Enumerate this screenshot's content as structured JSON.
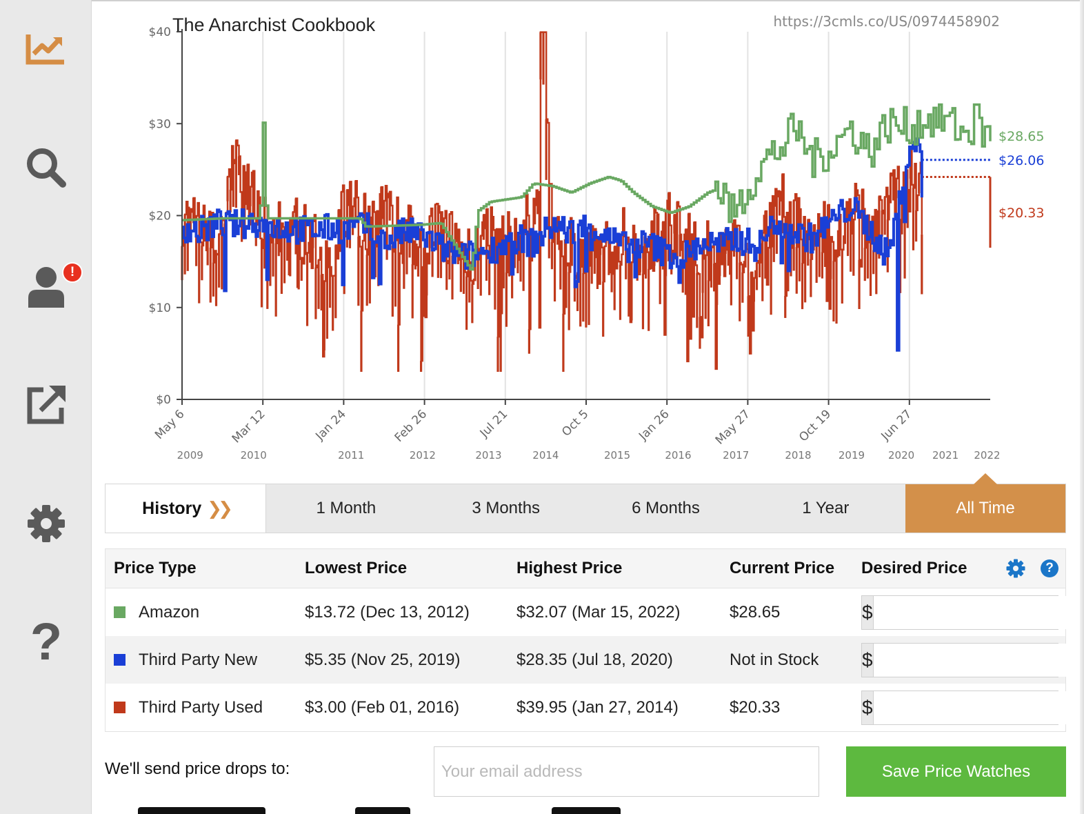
{
  "sidebar": {
    "items": [
      {
        "name": "price-history",
        "icon": "chart-line-icon",
        "color": "#d58d45"
      },
      {
        "name": "search",
        "icon": "search-icon",
        "color": "#5a5a5a"
      },
      {
        "name": "account",
        "icon": "user-icon",
        "color": "#5a5a5a",
        "badge": "!"
      },
      {
        "name": "open-external",
        "icon": "external-link-icon",
        "color": "#5a5a5a"
      },
      {
        "name": "settings",
        "icon": "gear-icon",
        "color": "#5a5a5a"
      },
      {
        "name": "help",
        "icon": "help-icon",
        "color": "#5a5a5a",
        "glyph": "?"
      }
    ]
  },
  "chart_data": {
    "type": "line",
    "title": "The Anarchist Cookbook",
    "source_url": "https://3cmls.co/US/0974458902",
    "ylabel": "",
    "xlabel": "",
    "ylim": [
      0,
      40
    ],
    "xlim": [
      2009.35,
      2022.35
    ],
    "yticks": [
      {
        "value": 0,
        "label": "$0"
      },
      {
        "value": 10,
        "label": "$10"
      },
      {
        "value": 20,
        "label": "$20"
      },
      {
        "value": 30,
        "label": "$30"
      },
      {
        "value": 40,
        "label": "$40"
      }
    ],
    "xticks_primary": [
      {
        "value": 2009.35,
        "label": "May 6"
      },
      {
        "value": 2010.65,
        "label": "Mar 12"
      },
      {
        "value": 2011.95,
        "label": "Jan 24"
      },
      {
        "value": 2013.25,
        "label": "Feb 26"
      },
      {
        "value": 2014.55,
        "label": "Jul 21"
      },
      {
        "value": 2015.85,
        "label": "Oct 5"
      },
      {
        "value": 2017.15,
        "label": "Jan 26"
      },
      {
        "value": 2018.45,
        "label": "May 27"
      },
      {
        "value": 2019.75,
        "label": "Oct 19"
      },
      {
        "value": 2021.05,
        "label": "Jun 27"
      }
    ],
    "xticks_years": [
      {
        "value": 2009.48,
        "label": "2009"
      },
      {
        "value": 2010.5,
        "label": "2010"
      },
      {
        "value": 2012.07,
        "label": "2011"
      },
      {
        "value": 2013.22,
        "label": "2012"
      },
      {
        "value": 2014.28,
        "label": "2013"
      },
      {
        "value": 2015.2,
        "label": "2014"
      },
      {
        "value": 2016.35,
        "label": "2015"
      },
      {
        "value": 2017.33,
        "label": "2016"
      },
      {
        "value": 2018.26,
        "label": "2017"
      },
      {
        "value": 2019.26,
        "label": "2018"
      },
      {
        "value": 2020.12,
        "label": "2019"
      },
      {
        "value": 2020.92,
        "label": "2020"
      },
      {
        "value": 2021.63,
        "label": "2021"
      },
      {
        "value": 2022.3,
        "label": "2022"
      }
    ],
    "series": [
      {
        "name": "Third Party Used",
        "color": "#c0391b",
        "current_label": "$20.33",
        "current": 20.33,
        "x": [
          2009.35,
          2009.6,
          2009.9,
          2010.2,
          2010.5,
          2010.8,
          2011.1,
          2011.4,
          2011.6,
          2011.8,
          2011.9,
          2012.1,
          2012.3,
          2012.6,
          2012.9,
          2013.2,
          2013.5,
          2013.8,
          2014.0,
          2014.3,
          2014.6,
          2014.9,
          2015.1,
          2015.15,
          2015.3,
          2015.6,
          2015.9,
          2016.2,
          2016.5,
          2016.8,
          2017.1,
          2017.15,
          2017.4,
          2017.7,
          2018.0,
          2018.3,
          2018.5,
          2018.7,
          2019.0,
          2019.3,
          2019.6,
          2019.9,
          2020.2,
          2020.5,
          2020.8,
          2021.0,
          2021.3,
          2021.6,
          2021.9,
          2022.35
        ],
        "values": [
          20.2,
          18.5,
          17.0,
          25.5,
          21.5,
          18.0,
          19.5,
          17.5,
          16.5,
          12.5,
          19.8,
          21.5,
          19.0,
          20.5,
          18.0,
          17.5,
          19.0,
          17.0,
          15.5,
          18.5,
          17.0,
          19.0,
          21.0,
          39.95,
          19.5,
          17.0,
          15.5,
          16.5,
          18.5,
          16.0,
          19.5,
          20.5,
          17.0,
          16.5,
          15.5,
          17.5,
          14.0,
          19.0,
          21.5,
          18.0,
          19.0,
          17.5,
          21.0,
          18.5,
          22.5,
          23.5,
          24.2,
          24.2,
          24.2,
          20.33
        ],
        "min": 3.0,
        "max": 39.95
      },
      {
        "name": "Third Party New",
        "color": "#1a3fd6",
        "current_label": "$26.06",
        "current": 26.06,
        "x": [
          2009.35,
          2009.6,
          2009.9,
          2010.2,
          2010.5,
          2010.8,
          2011.1,
          2011.4,
          2011.7,
          2012.0,
          2012.3,
          2012.6,
          2012.9,
          2013.2,
          2013.5,
          2013.8,
          2014.1,
          2014.4,
          2014.7,
          2015.0,
          2015.3,
          2015.6,
          2015.9,
          2016.2,
          2016.5,
          2016.8,
          2017.1,
          2017.4,
          2017.7,
          2018.0,
          2018.3,
          2018.6,
          2018.9,
          2019.2,
          2019.5,
          2019.8,
          2020.1,
          2020.4,
          2020.7,
          2020.9,
          2021.1,
          2021.3,
          2021.5,
          2022.35
        ],
        "values": [
          18.8,
          18.2,
          19.2,
          19.0,
          19.3,
          18.8,
          18.5,
          18.4,
          18.6,
          18.6,
          18.8,
          17.0,
          18.2,
          18.0,
          16.5,
          15.5,
          15.8,
          16.5,
          17.5,
          17.0,
          19.0,
          18.2,
          19.0,
          17.5,
          16.5,
          17.0,
          16.0,
          15.5,
          17.0,
          16.8,
          17.5,
          16.5,
          19.5,
          18.0,
          17.5,
          19.5,
          21.0,
          18.5,
          15.5,
          22.5,
          28.35,
          26.06,
          26.06,
          26.06
        ],
        "min": 5.35,
        "max": 28.35
      },
      {
        "name": "Amazon",
        "color": "#69a862",
        "current_label": "$28.65",
        "current": 28.65,
        "x": [
          2009.35,
          2010.0,
          2010.6,
          2010.65,
          2010.7,
          2011.5,
          2012.2,
          2012.3,
          2013.2,
          2013.5,
          2014.0,
          2014.1,
          2014.3,
          2014.8,
          2015.0,
          2015.3,
          2015.6,
          2015.9,
          2016.2,
          2016.4,
          2016.6,
          2016.9,
          2017.2,
          2017.5,
          2017.8,
          2018.0,
          2018.2,
          2018.4,
          2018.6,
          2018.8,
          2019.0,
          2019.2,
          2019.5,
          2019.8,
          2020.1,
          2020.4,
          2020.7,
          2021.0,
          2021.3,
          2021.6,
          2021.9,
          2022.2,
          2022.35
        ],
        "values": [
          19.5,
          19.7,
          19.7,
          30.1,
          19.7,
          19.7,
          19.7,
          18.8,
          19.0,
          19.2,
          14.0,
          20.5,
          21.5,
          22.0,
          23.5,
          23.2,
          22.5,
          23.5,
          24.2,
          23.8,
          22.5,
          21.0,
          20.3,
          21.0,
          22.5,
          23.0,
          20.0,
          22.5,
          25.0,
          26.5,
          27.5,
          29.5,
          26.0,
          27.5,
          29.5,
          27.0,
          30.0,
          29.5,
          30.5,
          30.5,
          29.0,
          29.0,
          28.65
        ],
        "min": 13.72,
        "max": 32.07
      }
    ]
  },
  "tabs": {
    "history_label": "History",
    "items": [
      "1 Month",
      "3 Months",
      "6 Months",
      "1 Year",
      "All Time"
    ],
    "active": "All Time",
    "accent_color": "#d3904a"
  },
  "table": {
    "headers": {
      "price_type": "Price Type",
      "lowest": "Lowest Price",
      "highest": "Highest Price",
      "current": "Current Price",
      "desired": "Desired Price"
    },
    "currency_symbol": "$",
    "rows": [
      {
        "name": "Amazon",
        "color": "#69a862",
        "lowest": "$13.72 (Dec 13, 2012)",
        "highest": "$32.07 (Mar 15, 2022)",
        "current": "$28.65",
        "desired": ""
      },
      {
        "name": "Third Party New",
        "color": "#1a3fd6",
        "lowest": "$5.35 (Nov 25, 2019)",
        "highest": "$28.35 (Jul 18, 2020)",
        "current": "Not in Stock",
        "desired": ""
      },
      {
        "name": "Third Party Used",
        "color": "#c0391b",
        "lowest": "$3.00 (Feb 01, 2016)",
        "highest": "$39.95 (Jan 27, 2014)",
        "current": "$20.33",
        "desired": ""
      }
    ]
  },
  "email": {
    "label": "We'll send price drops to:",
    "placeholder": "Your email address",
    "value": "",
    "save_label": "Save Price Watches",
    "save_color": "#5db93f"
  }
}
